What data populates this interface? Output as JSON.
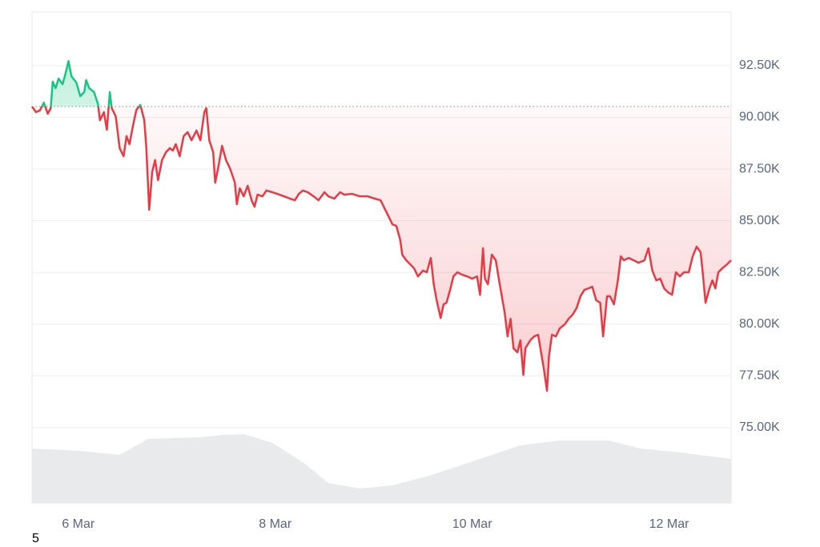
{
  "chart_data": {
    "type": "line",
    "x": [
      5.53,
      5.57,
      5.61,
      5.65,
      5.69,
      5.72,
      5.74,
      5.77,
      5.8,
      5.84,
      5.87,
      5.9,
      5.93,
      5.98,
      6.02,
      6.06,
      6.08,
      6.11,
      6.16,
      6.2,
      6.22,
      6.26,
      6.29,
      6.32,
      6.34,
      6.38,
      6.42,
      6.46,
      6.49,
      6.52,
      6.55,
      6.59,
      6.63,
      6.67,
      6.69,
      6.72,
      6.75,
      6.78,
      6.81,
      6.85,
      6.89,
      6.93,
      6.96,
      6.99,
      7.03,
      7.07,
      7.11,
      7.15,
      7.2,
      7.24,
      7.28,
      7.3,
      7.33,
      7.37,
      7.39,
      7.42,
      7.46,
      7.5,
      7.54,
      7.59,
      7.61,
      7.64,
      7.68,
      7.72,
      7.76,
      7.79,
      7.82,
      7.87,
      7.91,
      7.97,
      8.02,
      8.09,
      8.15,
      8.2,
      8.24,
      8.28,
      8.33,
      8.39,
      8.44,
      8.5,
      8.54,
      8.6,
      8.66,
      8.7,
      8.78,
      8.86,
      8.94,
      9.01,
      9.07,
      9.11,
      9.15,
      9.19,
      9.23,
      9.27,
      9.29,
      9.33,
      9.37,
      9.41,
      9.45,
      9.5,
      9.54,
      9.58,
      9.61,
      9.64,
      9.68,
      9.71,
      9.74,
      9.78,
      9.81,
      9.85,
      9.9,
      9.95,
      10.0,
      10.05,
      10.08,
      10.11,
      10.13,
      10.16,
      10.2,
      10.24,
      10.28,
      10.33,
      10.36,
      10.39,
      10.42,
      10.46,
      10.49,
      10.52,
      10.54,
      10.59,
      10.63,
      10.67,
      10.7,
      10.73,
      10.76,
      10.78,
      10.81,
      10.85,
      10.89,
      10.94,
      10.98,
      11.02,
      11.06,
      11.1,
      11.14,
      11.18,
      11.22,
      11.26,
      11.3,
      11.33,
      11.37,
      11.4,
      11.44,
      11.48,
      11.51,
      11.54,
      11.59,
      11.64,
      11.69,
      11.75,
      11.79,
      11.83,
      11.87,
      11.91,
      11.95,
      11.99,
      12.03,
      12.07,
      12.11,
      12.15,
      12.2,
      12.24,
      12.28,
      12.32,
      12.34,
      12.37,
      12.41,
      12.44,
      12.47,
      12.5,
      12.54,
      12.59,
      12.63
    ],
    "values": [
      90520,
      90250,
      90330,
      90710,
      90170,
      90440,
      91720,
      91410,
      91870,
      91600,
      92110,
      92720,
      91990,
      91680,
      91020,
      91220,
      91800,
      91410,
      91220,
      90630,
      89860,
      90250,
      89400,
      91220,
      90440,
      90050,
      88510,
      88120,
      89090,
      88700,
      89470,
      90360,
      90600,
      89860,
      88580,
      85530,
      87350,
      87930,
      86960,
      87930,
      88310,
      88510,
      88390,
      88700,
      88120,
      89090,
      89280,
      88890,
      89360,
      88890,
      90250,
      90440,
      88890,
      88310,
      86840,
      87540,
      88620,
      87930,
      87540,
      86840,
      85800,
      86570,
      86180,
      86690,
      85990,
      85680,
      86260,
      86180,
      86460,
      86380,
      86300,
      86180,
      86070,
      85990,
      86300,
      86460,
      86380,
      86180,
      85990,
      86380,
      86180,
      86070,
      86380,
      86260,
      86300,
      86180,
      86180,
      86070,
      85990,
      85600,
      85220,
      84830,
      84750,
      84060,
      83360,
      83090,
      82900,
      82700,
      82310,
      82590,
      82510,
      83200,
      81930,
      81150,
      80300,
      80960,
      81040,
      81730,
      82310,
      82510,
      82390,
      82310,
      82200,
      82310,
      81420,
      83670,
      82200,
      81930,
      83360,
      83090,
      81930,
      80570,
      79410,
      80260,
      78830,
      78640,
      79220,
      77550,
      78830,
      79220,
      79410,
      79490,
      78640,
      77790,
      76780,
      78440,
      79490,
      79410,
      79800,
      79990,
      80260,
      80460,
      80770,
      81350,
      81660,
      81730,
      81810,
      81150,
      81040,
      79410,
      81350,
      81350,
      80960,
      82120,
      83280,
      83090,
      83200,
      83090,
      82970,
      83090,
      83670,
      82590,
      82120,
      82200,
      81730,
      81540,
      81420,
      82510,
      82310,
      82510,
      82510,
      83280,
      83750,
      83480,
      82590,
      81040,
      81730,
      82120,
      81730,
      82510,
      82700,
      82900,
      83090
    ],
    "reference_line": 90520,
    "up_color": "#16c784",
    "down_color": "#ea3943",
    "volume": {
      "x": [
        5.53,
        6.02,
        6.42,
        6.71,
        7.24,
        7.48,
        7.68,
        7.97,
        8.29,
        8.54,
        8.86,
        9.19,
        9.59,
        10.08,
        10.49,
        10.89,
        11.38,
        11.71,
        12.11,
        12.63
      ],
      "values": [
        68,
        65,
        60,
        80,
        82,
        85,
        86,
        75,
        50,
        25,
        18,
        22,
        35,
        55,
        72,
        78,
        78,
        68,
        63,
        55
      ],
      "color": "#e9eaec"
    },
    "xlim": [
      5.53,
      12.63
    ],
    "xticks": [
      {
        "value": 6,
        "label": "6 Mar"
      },
      {
        "value": 8,
        "label": "8 Mar"
      },
      {
        "value": 10,
        "label": "10 Mar"
      },
      {
        "value": 12,
        "label": "12 Mar"
      }
    ],
    "ylim": [
      71360,
      95090
    ],
    "yticks": [
      {
        "value": 75000,
        "label": "75.00K"
      },
      {
        "value": 77500,
        "label": "77.50K"
      },
      {
        "value": 80000,
        "label": "80.00K"
      },
      {
        "value": 82500,
        "label": "82.50K"
      },
      {
        "value": 85000,
        "label": "85.00K"
      },
      {
        "value": 87500,
        "label": "87.50K"
      },
      {
        "value": 90000,
        "label": "90.00K"
      },
      {
        "value": 92500,
        "label": "92.50K"
      }
    ],
    "grid": true,
    "footnote": "5"
  }
}
